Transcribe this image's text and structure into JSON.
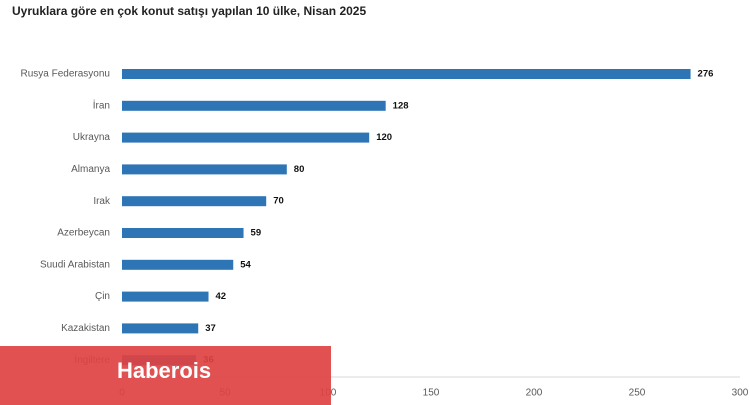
{
  "chart_data": {
    "type": "bar",
    "orientation": "horizontal",
    "title": "Uyruklara göre en çok konut satışı yapılan 10 ülke, Nisan 2025",
    "categories": [
      "Rusya Federasyonu",
      "İran",
      "Ukrayna",
      "Almanya",
      "Irak",
      "Azerbeycan",
      "Suudi Arabistan",
      "Çin",
      "Kazakistan",
      "İngiltere"
    ],
    "values": [
      276,
      128,
      120,
      80,
      70,
      59,
      54,
      42,
      37,
      36
    ],
    "color": "#2e75b6",
    "xlim": [
      0,
      300
    ],
    "xticks": [
      0,
      50,
      100,
      150,
      200,
      250,
      300
    ],
    "grid": false
  },
  "watermark": "Haberois"
}
